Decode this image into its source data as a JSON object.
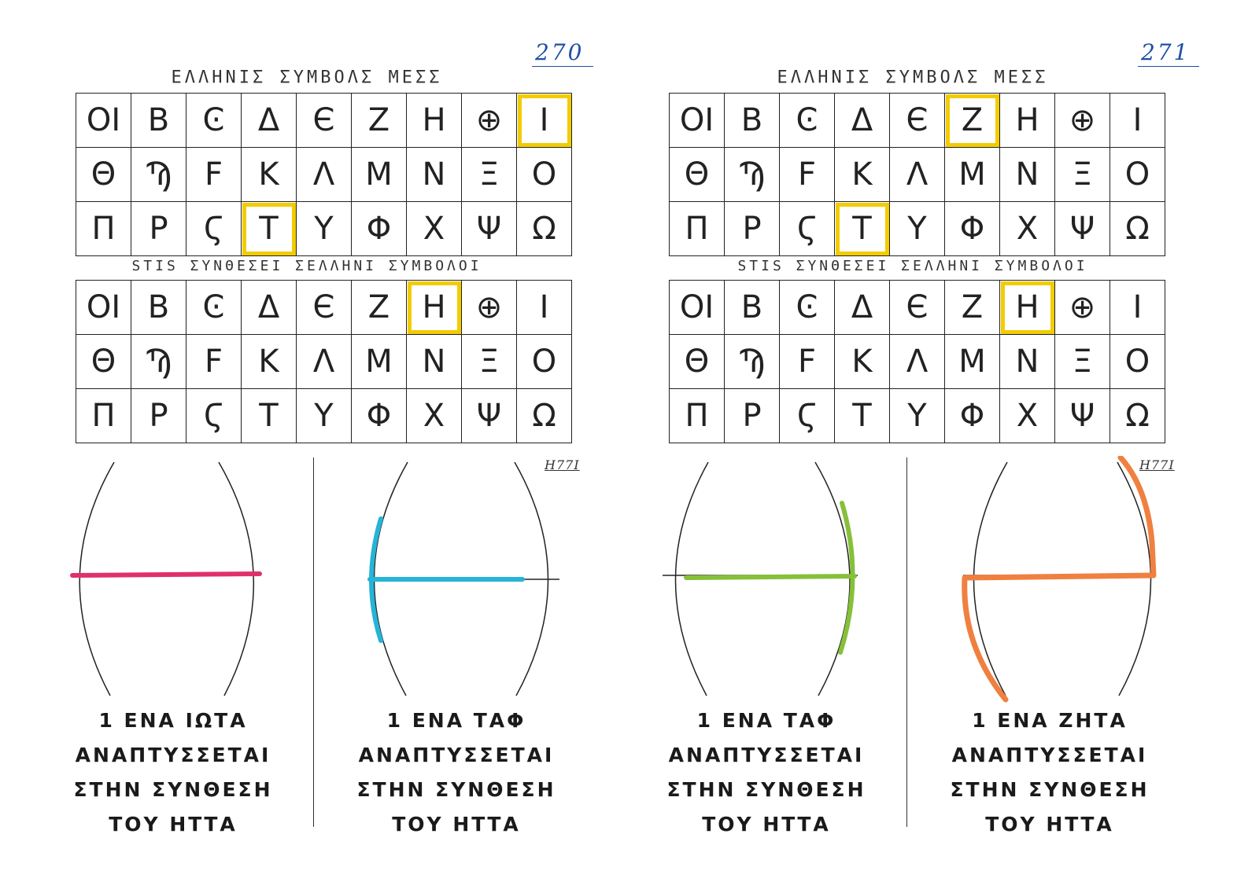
{
  "pages": [
    {
      "page_number": "270",
      "title_top": "ΕΛΛΗΝΙΣ ΣΥΜΒΟΛΣ ΜΕΣΣ",
      "title_mid": "STIS ΣΥΝΘΕΣΕΙ ΣΕΛΛΗΝΙ ΣΥΜΒΟΛΟΙ",
      "grid_top": [
        [
          "ΟΙ",
          "Β",
          "Ͼ",
          "Δ",
          "Є",
          "Ζ",
          "Η",
          "⊕",
          "Ι"
        ],
        [
          "Θ",
          "Ϡ",
          "F",
          "Κ",
          "Λ",
          "Μ",
          "Ν",
          "Ξ",
          "Ο"
        ],
        [
          "Π",
          "Ρ",
          "Ϛ",
          "Τ",
          "Υ",
          "Φ",
          "Χ",
          "Ψ",
          "Ω"
        ]
      ],
      "grid_top_highlight": [
        "0-8",
        "2-3"
      ],
      "grid_bottom": [
        [
          "ΟΙ",
          "Β",
          "Ͼ",
          "Δ",
          "Є",
          "Ζ",
          "Η",
          "⊕",
          "Ι"
        ],
        [
          "Θ",
          "Ϡ",
          "F",
          "Κ",
          "Λ",
          "Μ",
          "Ν",
          "Ξ",
          "Ο"
        ],
        [
          "Π",
          "Ρ",
          "Ϛ",
          "Τ",
          "Υ",
          "Φ",
          "Χ",
          "Ψ",
          "Ω"
        ]
      ],
      "grid_bottom_highlight": [
        "0-6"
      ],
      "corner_code": "Η77Ι",
      "panels": [
        {
          "caption": [
            "1 ΕΝΑ ΙΩΤΑ",
            "ΑΝΑΠΤΥΣΣΕΤΑΙ",
            "ΣΤΗΝ ΣΥΝΘΕΣΗ",
            "ΤΟΥ ΗΤΤΑ"
          ],
          "color": "#e0306a",
          "shape": "iota"
        },
        {
          "caption": [
            "1 ΕΝΑ ΤΑΦ",
            "ΑΝΑΠΤΥΣΣΕΤΑΙ",
            "ΣΤΗΝ ΣΥΝΘΕΣΗ",
            "ΤΟΥ ΗΤΤΑ"
          ],
          "color": "#25b4d8",
          "shape": "tau-left"
        }
      ]
    },
    {
      "page_number": "271",
      "title_top": "ΕΛΛΗΝΙΣ ΣΥΜΒΟΛΣ ΜΕΣΣ",
      "title_mid": "STIS ΣΥΝΘΕΣΕΙ ΣΕΛΛΗΝΙ ΣΥΜΒΟΛΟΙ",
      "grid_top": [
        [
          "ΟΙ",
          "Β",
          "Ͼ",
          "Δ",
          "Є",
          "Ζ",
          "Η",
          "⊕",
          "Ι"
        ],
        [
          "Θ",
          "Ϡ",
          "F",
          "Κ",
          "Λ",
          "Μ",
          "Ν",
          "Ξ",
          "Ο"
        ],
        [
          "Π",
          "Ρ",
          "Ϛ",
          "Τ",
          "Υ",
          "Φ",
          "Χ",
          "Ψ",
          "Ω"
        ]
      ],
      "grid_top_highlight": [
        "0-5",
        "2-3"
      ],
      "grid_bottom": [
        [
          "ΟΙ",
          "Β",
          "Ͼ",
          "Δ",
          "Є",
          "Ζ",
          "Η",
          "⊕",
          "Ι"
        ],
        [
          "Θ",
          "Ϡ",
          "F",
          "Κ",
          "Λ",
          "Μ",
          "Ν",
          "Ξ",
          "Ο"
        ],
        [
          "Π",
          "Ρ",
          "Ϛ",
          "Τ",
          "Υ",
          "Φ",
          "Χ",
          "Ψ",
          "Ω"
        ]
      ],
      "grid_bottom_highlight": [
        "0-6"
      ],
      "corner_code": "Η77Ι",
      "panels": [
        {
          "caption": [
            "1 ΕΝΑ ΤΑΦ",
            "ΑΝΑΠΤΥΣΣΕΤΑΙ",
            "ΣΤΗΝ ΣΥΝΘΕΣΗ",
            "ΤΟΥ ΗΤΤΑ"
          ],
          "color": "#86c03a",
          "shape": "tau-right"
        },
        {
          "caption": [
            "1 ΕΝΑ ΖΗΤΑ",
            "ΑΝΑΠΤΥΣΣΕΤΑΙ",
            "ΣΤΗΝ ΣΥΝΘΕΣΗ",
            "ΤΟΥ ΗΤΤΑ"
          ],
          "color": "#f08040",
          "shape": "zeta"
        }
      ]
    }
  ]
}
